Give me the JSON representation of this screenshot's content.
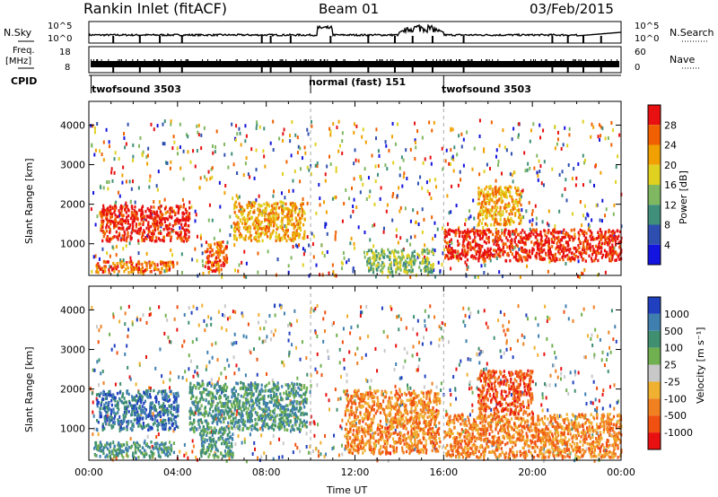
{
  "header": {
    "station": "Rankin Inlet (fitACF)",
    "beam": "Beam 01",
    "date": "03/Feb/2015"
  },
  "strips": {
    "nsky_label": "N.Sky",
    "nsky_ticks": [
      "10^5",
      "10^0"
    ],
    "nsearch_label": "N.Search",
    "nsearch_ticks": [
      "10^5",
      "10^0"
    ],
    "freq_label": "Freq.",
    "freq_unit": "[MHz]",
    "freq_ticks": [
      "18",
      "8"
    ],
    "nave_label": "Nave",
    "nave_ticks": [
      "60",
      "0"
    ],
    "cpid_label": "CPID",
    "modes": [
      "twofsound 3503",
      "normal (fast) 151",
      "twofsound 3503"
    ]
  },
  "colors": {
    "power": [
      "#1414e0",
      "#2e4fb0",
      "#3f8f7a",
      "#7fb860",
      "#e0d020",
      "#f0a000",
      "#f06000",
      "#e81010"
    ],
    "velocity": [
      "#2040c0",
      "#3f7fb0",
      "#3f8f70",
      "#70b050",
      "#c8c8c8",
      "#f0b030",
      "#f08020",
      "#f05010",
      "#e81010"
    ]
  },
  "chart_data": [
    {
      "type": "heatmap",
      "name": "Power",
      "xlabel": "",
      "ylabel": "Slant Range [km]",
      "xticks": [
        "00:00",
        "04:00",
        "08:00",
        "12:00",
        "16:00",
        "20:00",
        "00:00"
      ],
      "yticks": [
        "1000",
        "2000",
        "3000",
        "4000"
      ],
      "ylim": [
        200,
        4600
      ],
      "colorbar_label": "Power [dB]",
      "colorbar_ticks": [
        "4",
        "8",
        "12",
        "16",
        "20",
        "24",
        "28"
      ],
      "regions": [
        {
          "t0": 0.5,
          "t1": 4.5,
          "r0": 1100,
          "r1": 2000,
          "level": 7
        },
        {
          "t0": 0.2,
          "t1": 3.8,
          "r0": 300,
          "r1": 600,
          "level": 6
        },
        {
          "t0": 5.2,
          "t1": 6.2,
          "r0": 300,
          "r1": 1100,
          "level": 6
        },
        {
          "t0": 6.5,
          "t1": 9.7,
          "r0": 1100,
          "r1": 2100,
          "level": 5
        },
        {
          "t0": 12.5,
          "t1": 15.5,
          "r0": 300,
          "r1": 900,
          "level": 3
        },
        {
          "t0": 16.0,
          "t1": 24.0,
          "r0": 600,
          "r1": 1400,
          "level": 7
        },
        {
          "t0": 17.5,
          "t1": 19.5,
          "r0": 1500,
          "r1": 2500,
          "level": 5
        }
      ]
    },
    {
      "type": "heatmap",
      "name": "Velocity",
      "xlabel": "Time UT",
      "ylabel": "Slant Range [km]",
      "xticks": [
        "00:00",
        "04:00",
        "08:00",
        "12:00",
        "16:00",
        "20:00",
        "00:00"
      ],
      "yticks": [
        "1000",
        "2000",
        "3000",
        "4000"
      ],
      "ylim": [
        200,
        4600
      ],
      "colorbar_label": "Velocity [m s⁻¹]",
      "colorbar_ticks": [
        "1000",
        "500",
        "100",
        "25",
        "-25",
        "-100",
        "-500",
        "-1000"
      ],
      "regions": [
        {
          "t0": 0.3,
          "t1": 4.0,
          "r0": 1000,
          "r1": 2000,
          "level": 1
        },
        {
          "t0": 0.2,
          "t1": 3.8,
          "r0": 300,
          "r1": 700,
          "level": 2
        },
        {
          "t0": 4.5,
          "t1": 9.8,
          "r0": 1000,
          "r1": 2200,
          "level": 2
        },
        {
          "t0": 5.0,
          "t1": 6.5,
          "r0": 300,
          "r1": 1000,
          "level": 2
        },
        {
          "t0": 11.5,
          "t1": 15.8,
          "r0": 400,
          "r1": 2000,
          "level": 6
        },
        {
          "t0": 16.0,
          "t1": 24.0,
          "r0": 300,
          "r1": 1400,
          "level": 6
        },
        {
          "t0": 17.5,
          "t1": 20.0,
          "r0": 1400,
          "r1": 2500,
          "level": 7
        }
      ]
    }
  ]
}
